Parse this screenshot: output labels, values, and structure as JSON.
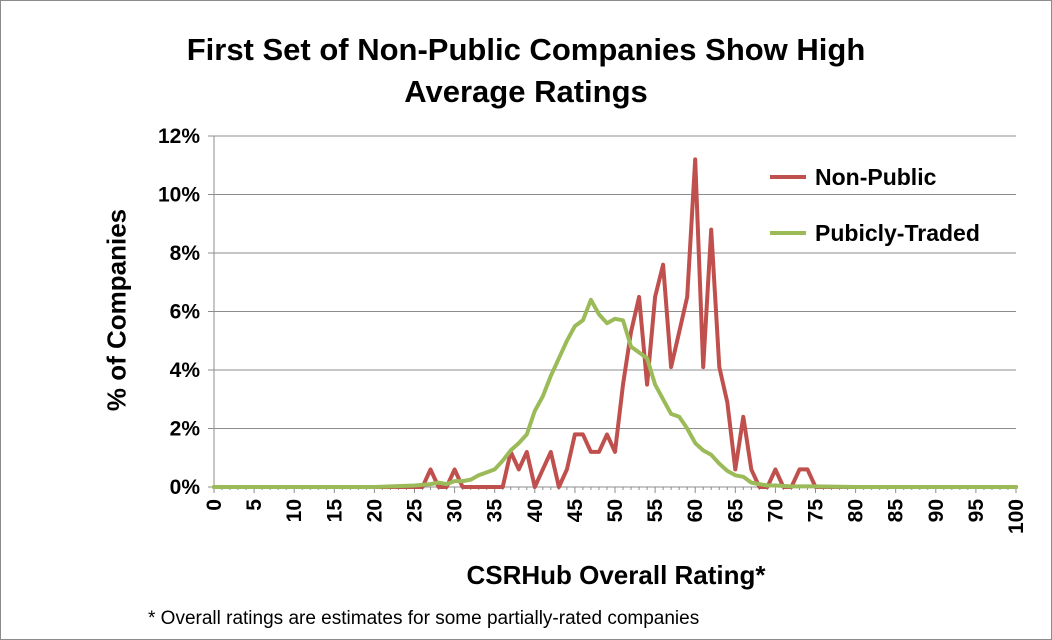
{
  "chart_data": {
    "type": "line",
    "title_lines": [
      "First Set of Non-Public Companies Show High",
      "Average Ratings"
    ],
    "xlabel": "CSRHub Overall Rating*",
    "ylabel": "% of Companies",
    "footnote": "* Overall ratings are estimates for some partially-rated companies",
    "xlim": [
      0,
      100
    ],
    "ylim": [
      0,
      12
    ],
    "x_ticks": [
      "0",
      "5",
      "10",
      "15",
      "20",
      "25",
      "30",
      "35",
      "40",
      "45",
      "50",
      "55",
      "60",
      "65",
      "70",
      "75",
      "80",
      "85",
      "90",
      "95",
      "100"
    ],
    "y_ticks": [
      "0%",
      "2%",
      "4%",
      "6%",
      "8%",
      "10%",
      "12%"
    ],
    "grid": true,
    "legend_position": "top-right",
    "series": [
      {
        "name": "Non-Public",
        "color": "#c0504d",
        "x": [
          0,
          5,
          10,
          15,
          20,
          25,
          26,
          27,
          28,
          29,
          30,
          31,
          32,
          33,
          34,
          35,
          36,
          37,
          38,
          39,
          40,
          41,
          42,
          43,
          44,
          45,
          46,
          47,
          48,
          49,
          50,
          51,
          52,
          53,
          54,
          55,
          56,
          57,
          58,
          59,
          60,
          61,
          62,
          63,
          64,
          65,
          66,
          67,
          68,
          69,
          70,
          71,
          72,
          73,
          74,
          75,
          80,
          85,
          90,
          95,
          100
        ],
        "y": [
          0,
          0,
          0,
          0,
          0,
          0,
          0,
          0.6,
          0,
          0,
          0.6,
          0,
          0,
          0,
          0,
          0,
          0,
          1.2,
          0.6,
          1.2,
          0,
          0.6,
          1.2,
          0,
          0.6,
          1.8,
          1.8,
          1.2,
          1.2,
          1.8,
          1.2,
          3.5,
          5.3,
          6.5,
          3.5,
          6.5,
          7.6,
          4.1,
          5.3,
          6.5,
          11.2,
          4.1,
          8.8,
          4.1,
          2.9,
          0.6,
          2.4,
          0.6,
          0,
          0,
          0.6,
          0,
          0,
          0.6,
          0.6,
          0,
          0,
          0,
          0,
          0,
          0
        ]
      },
      {
        "name": "Pubicly-Traded",
        "color": "#9bbb59",
        "x": [
          0,
          5,
          10,
          15,
          20,
          25,
          27,
          28,
          29,
          30,
          31,
          32,
          33,
          34,
          35,
          36,
          37,
          38,
          39,
          40,
          41,
          42,
          43,
          44,
          45,
          46,
          47,
          48,
          49,
          50,
          51,
          52,
          53,
          54,
          55,
          56,
          57,
          58,
          59,
          60,
          61,
          62,
          63,
          64,
          65,
          66,
          67,
          68,
          69,
          70,
          72,
          75,
          80,
          85,
          90,
          95,
          100
        ],
        "y": [
          0,
          0,
          0,
          0,
          0,
          0.05,
          0.1,
          0.15,
          0.1,
          0.2,
          0.2,
          0.25,
          0.4,
          0.5,
          0.6,
          0.9,
          1.25,
          1.5,
          1.8,
          2.6,
          3.1,
          3.8,
          4.4,
          5.0,
          5.5,
          5.7,
          6.4,
          5.9,
          5.6,
          5.75,
          5.7,
          4.8,
          4.6,
          4.4,
          3.5,
          3.0,
          2.5,
          2.4,
          2.0,
          1.5,
          1.25,
          1.1,
          0.8,
          0.55,
          0.4,
          0.35,
          0.15,
          0.1,
          0.05,
          0.05,
          0.02,
          0.02,
          0,
          0,
          0,
          0,
          0
        ]
      }
    ]
  }
}
